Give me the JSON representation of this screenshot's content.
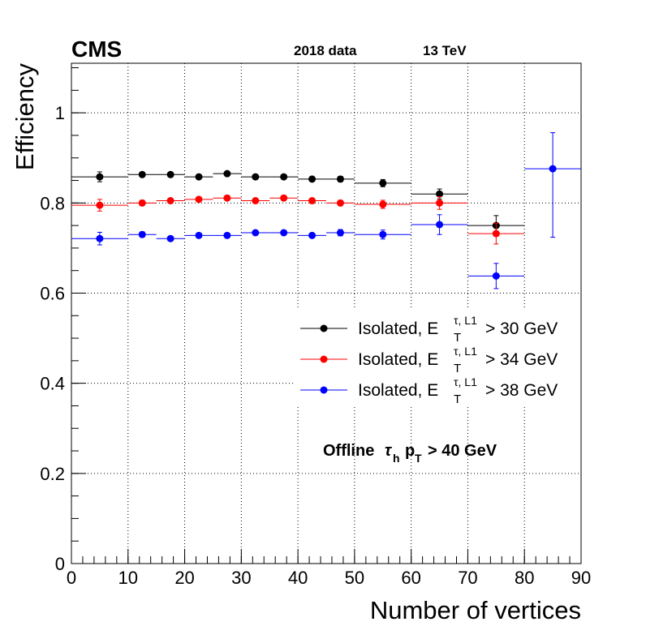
{
  "chart_data": {
    "type": "scatter",
    "title": "",
    "experiment": "CMS",
    "dataset_label": "2018 data",
    "energy_label": "13 TeV",
    "xlabel": "Number of vertices",
    "ylabel": "Efficiency",
    "xlim": [
      0,
      90
    ],
    "ylim": [
      0,
      1.11
    ],
    "x_ticks": [
      0,
      10,
      20,
      30,
      40,
      50,
      60,
      70,
      80,
      90
    ],
    "y_ticks": [
      0,
      0.2,
      0.4,
      0.6,
      0.8,
      1
    ],
    "y_tick_labels": [
      "0",
      "0.2",
      "0.4",
      "0.6",
      "0.8",
      "1"
    ],
    "grid": true,
    "legend_position": "right",
    "annotation": {
      "prefix": "Offline",
      "tau": "τ",
      "tau_sub": "h",
      "p": "p",
      "p_sub": "T",
      "suffix": "> 40 GeV"
    },
    "series": [
      {
        "legend": {
          "prefix": "Isolated, E",
          "sup": "τ, L1",
          "sub": "T",
          "suffix": "> 30 GeV"
        },
        "color": "#000000",
        "points": [
          {
            "xlo": 0,
            "xhi": 10,
            "y": 0.858,
            "err": 0.011
          },
          {
            "xlo": 10,
            "xhi": 15,
            "y": 0.863,
            "err": 0.005
          },
          {
            "xlo": 15,
            "xhi": 20,
            "y": 0.863,
            "err": 0.004
          },
          {
            "xlo": 20,
            "xhi": 25,
            "y": 0.858,
            "err": 0.004
          },
          {
            "xlo": 25,
            "xhi": 30,
            "y": 0.865,
            "err": 0.004
          },
          {
            "xlo": 30,
            "xhi": 35,
            "y": 0.858,
            "err": 0.004
          },
          {
            "xlo": 35,
            "xhi": 40,
            "y": 0.858,
            "err": 0.004
          },
          {
            "xlo": 40,
            "xhi": 45,
            "y": 0.853,
            "err": 0.005
          },
          {
            "xlo": 45,
            "xhi": 50,
            "y": 0.853,
            "err": 0.006
          },
          {
            "xlo": 50,
            "xhi": 60,
            "y": 0.844,
            "err": 0.008
          },
          {
            "xlo": 60,
            "xhi": 70,
            "y": 0.82,
            "err": 0.011
          },
          {
            "xlo": 70,
            "xhi": 80,
            "y": 0.75,
            "err": 0.022
          }
        ]
      },
      {
        "legend": {
          "prefix": "Isolated, E",
          "sup": "τ, L1",
          "sub": "T",
          "suffix": "> 34 GeV"
        },
        "color": "#ff0000",
        "points": [
          {
            "xlo": 0,
            "xhi": 10,
            "y": 0.795,
            "err": 0.013
          },
          {
            "xlo": 10,
            "xhi": 15,
            "y": 0.8,
            "err": 0.006
          },
          {
            "xlo": 15,
            "xhi": 20,
            "y": 0.805,
            "err": 0.005
          },
          {
            "xlo": 20,
            "xhi": 25,
            "y": 0.808,
            "err": 0.005
          },
          {
            "xlo": 25,
            "xhi": 30,
            "y": 0.811,
            "err": 0.005
          },
          {
            "xlo": 30,
            "xhi": 35,
            "y": 0.805,
            "err": 0.005
          },
          {
            "xlo": 35,
            "xhi": 40,
            "y": 0.811,
            "err": 0.005
          },
          {
            "xlo": 40,
            "xhi": 45,
            "y": 0.805,
            "err": 0.005
          },
          {
            "xlo": 45,
            "xhi": 50,
            "y": 0.8,
            "err": 0.006
          },
          {
            "xlo": 50,
            "xhi": 60,
            "y": 0.797,
            "err": 0.009
          },
          {
            "xlo": 60,
            "xhi": 70,
            "y": 0.8,
            "err": 0.014
          },
          {
            "xlo": 70,
            "xhi": 80,
            "y": 0.732,
            "err": 0.023
          }
        ]
      },
      {
        "legend": {
          "prefix": "Isolated, E",
          "sup": "τ, L1",
          "sub": "T",
          "suffix": "> 38 GeV"
        },
        "color": "#0000ff",
        "points": [
          {
            "xlo": 0,
            "xhi": 10,
            "y": 0.721,
            "err": 0.014
          },
          {
            "xlo": 10,
            "xhi": 15,
            "y": 0.73,
            "err": 0.006
          },
          {
            "xlo": 15,
            "xhi": 20,
            "y": 0.721,
            "err": 0.005
          },
          {
            "xlo": 20,
            "xhi": 25,
            "y": 0.728,
            "err": 0.005
          },
          {
            "xlo": 25,
            "xhi": 30,
            "y": 0.728,
            "err": 0.005
          },
          {
            "xlo": 30,
            "xhi": 35,
            "y": 0.734,
            "err": 0.005
          },
          {
            "xlo": 35,
            "xhi": 40,
            "y": 0.734,
            "err": 0.005
          },
          {
            "xlo": 40,
            "xhi": 45,
            "y": 0.728,
            "err": 0.005
          },
          {
            "xlo": 45,
            "xhi": 50,
            "y": 0.734,
            "err": 0.007
          },
          {
            "xlo": 50,
            "xhi": 60,
            "y": 0.73,
            "err": 0.01
          },
          {
            "xlo": 60,
            "xhi": 70,
            "y": 0.752,
            "err": 0.022
          },
          {
            "xlo": 70,
            "xhi": 80,
            "y": 0.638,
            "err": 0.028
          },
          {
            "xlo": 80,
            "xhi": 90,
            "y": 0.876,
            "err": 0.08,
            "err_lo": 0.152
          }
        ]
      }
    ]
  }
}
